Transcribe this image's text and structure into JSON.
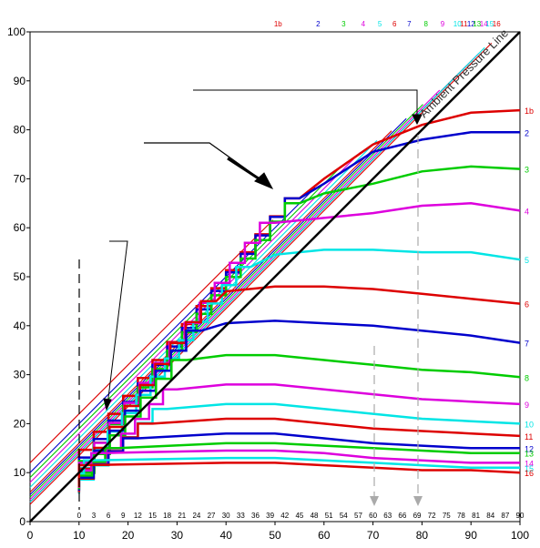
{
  "chart_data": {
    "type": "line",
    "title": "",
    "xlabel": "",
    "ylabel": "",
    "xlim": [
      0,
      100
    ],
    "ylim": [
      0,
      100
    ],
    "x_ticks": [
      "0",
      "10",
      "20",
      "30",
      "40",
      "50",
      "60",
      "70",
      "80",
      "90",
      "100"
    ],
    "y_ticks": [
      "0",
      "10",
      "20",
      "30",
      "40",
      "50",
      "60",
      "70",
      "80",
      "90",
      "100"
    ],
    "inner_ticks": [
      "0",
      "3",
      "6",
      "9",
      "12",
      "15",
      "18",
      "21",
      "24",
      "27",
      "30",
      "33",
      "36",
      "39",
      "42",
      "45",
      "48",
      "51",
      "54",
      "57",
      "60",
      "63",
      "66",
      "69",
      "72",
      "75",
      "78",
      "81",
      "84",
      "87",
      "90"
    ],
    "ambient_label": "Ambient Pressure Line",
    "grid": false,
    "series": [
      {
        "name": "1b",
        "color": "#dd0000",
        "stop_y": 84,
        "line": {
          "y0": 12,
          "top_x": 49.6
        },
        "x": [
          55,
          60,
          70,
          80,
          90,
          100
        ],
        "y": [
          66,
          70,
          77,
          81,
          83.5,
          84
        ]
      },
      {
        "name": "2",
        "color": "#0000cc",
        "stop_y": 79.5,
        "line": {
          "y0": 10,
          "top_x": 58.2
        },
        "x": [
          55,
          60,
          70,
          80,
          90,
          100
        ],
        "y": [
          66,
          69,
          75.5,
          78,
          79.5,
          79.5
        ]
      },
      {
        "name": "3",
        "color": "#00cc00",
        "stop_y": 72.5,
        "line": {
          "y0": 9,
          "top_x": 63.4
        },
        "x": [
          55,
          60,
          70,
          80,
          90,
          100
        ],
        "y": [
          65,
          67,
          69,
          71.5,
          72.5,
          72
        ]
      },
      {
        "name": "4",
        "color": "#dd00dd",
        "stop_y": 65,
        "line": {
          "y0": 8,
          "top_x": 67.4
        },
        "x": [
          50,
          60,
          70,
          80,
          90,
          100
        ],
        "y": [
          61,
          62,
          63,
          64.5,
          65,
          63.5
        ]
      },
      {
        "name": "5",
        "color": "#00e5e5",
        "stop_y": 56,
        "line": {
          "y0": 7,
          "top_x": 70.8
        },
        "x": [
          45,
          50,
          60,
          70,
          80,
          90,
          100
        ],
        "y": [
          52,
          54.5,
          55.5,
          55.5,
          55,
          55,
          53.5
        ]
      },
      {
        "name": "6",
        "color": "#dd0000",
        "stop_y": 48,
        "line": {
          "y0": 6,
          "top_x": 73.8
        },
        "x": [
          38,
          40,
          50,
          60,
          70,
          80,
          90,
          100
        ],
        "y": [
          45,
          47,
          48,
          48,
          47.5,
          46.5,
          45.5,
          44.5
        ]
      },
      {
        "name": "7",
        "color": "#0000cc",
        "stop_y": 41,
        "line": {
          "y0": 5.5,
          "top_x": 76.8
        },
        "x": [
          35,
          40,
          50,
          60,
          70,
          80,
          90,
          100
        ],
        "y": [
          39,
          40.5,
          41,
          40.5,
          40,
          39,
          38,
          36.5
        ]
      },
      {
        "name": "8",
        "color": "#00cc00",
        "stop_y": 34,
        "line": {
          "y0": 5,
          "top_x": 80.2
        },
        "x": [
          32,
          40,
          50,
          60,
          70,
          80,
          90,
          100
        ],
        "y": [
          33,
          34,
          34,
          33,
          32,
          31,
          30.5,
          29.5
        ]
      },
      {
        "name": "9",
        "color": "#dd00dd",
        "stop_y": 28,
        "line": {
          "y0": 4.5,
          "top_x": 83.6
        },
        "x": [
          30,
          40,
          50,
          60,
          70,
          80,
          90,
          100
        ],
        "y": [
          27,
          28,
          28,
          27,
          26,
          25,
          24.5,
          24
        ]
      },
      {
        "name": "10",
        "color": "#00e5e5",
        "stop_y": 24,
        "line": {
          "y0": 4,
          "top_x": 86.2
        },
        "x": [
          28,
          40,
          50,
          60,
          70,
          80,
          90,
          100
        ],
        "y": [
          23,
          24,
          24,
          23,
          22,
          21,
          20.5,
          20
        ]
      },
      {
        "name": "11",
        "color": "#dd0000",
        "stop_y": 21,
        "line": {
          "y0": 4,
          "top_x": 87.6
        },
        "x": [
          25,
          40,
          50,
          60,
          70,
          80,
          90,
          100
        ],
        "y": [
          20,
          21,
          21,
          20,
          19,
          18.5,
          18,
          17.5
        ]
      },
      {
        "name": "12",
        "color": "#0000cc",
        "stop_y": 18,
        "line": {
          "y0": 4,
          "top_x": 89.0
        },
        "x": [
          22,
          40,
          50,
          60,
          70,
          80,
          90,
          100
        ],
        "y": [
          17,
          18,
          18,
          17,
          16,
          15.5,
          15,
          15
        ]
      },
      {
        "name": "13",
        "color": "#00cc00",
        "stop_y": 16,
        "line": {
          "y0": 4,
          "top_x": 90.2
        },
        "x": [
          18,
          40,
          50,
          60,
          70,
          80,
          90,
          100
        ],
        "y": [
          15,
          16,
          16,
          15.5,
          15,
          14.5,
          14,
          14
        ]
      },
      {
        "name": "14",
        "color": "#dd00dd",
        "stop_y": 14.5,
        "line": {
          "y0": 4,
          "top_x": 91.6
        },
        "x": [
          15,
          40,
          50,
          60,
          70,
          80,
          90,
          100
        ],
        "y": [
          14,
          14.5,
          14.5,
          14,
          13,
          12.5,
          12,
          12
        ]
      },
      {
        "name": "15",
        "color": "#00e5e5",
        "stop_y": 13,
        "line": {
          "y0": 4,
          "top_x": 92.8
        },
        "x": [
          12,
          40,
          50,
          60,
          70,
          80,
          90,
          100
        ],
        "y": [
          12.5,
          13,
          13,
          12.5,
          12,
          11.5,
          11,
          11
        ]
      },
      {
        "name": "16",
        "color": "#dd0000",
        "stop_y": 12,
        "line": {
          "y0": 3.5,
          "top_x": 94.2
        },
        "x": [
          10,
          40,
          50,
          60,
          70,
          80,
          90,
          100
        ],
        "y": [
          11.5,
          12,
          12,
          11.5,
          11,
          10.5,
          10.5,
          10
        ]
      }
    ]
  }
}
